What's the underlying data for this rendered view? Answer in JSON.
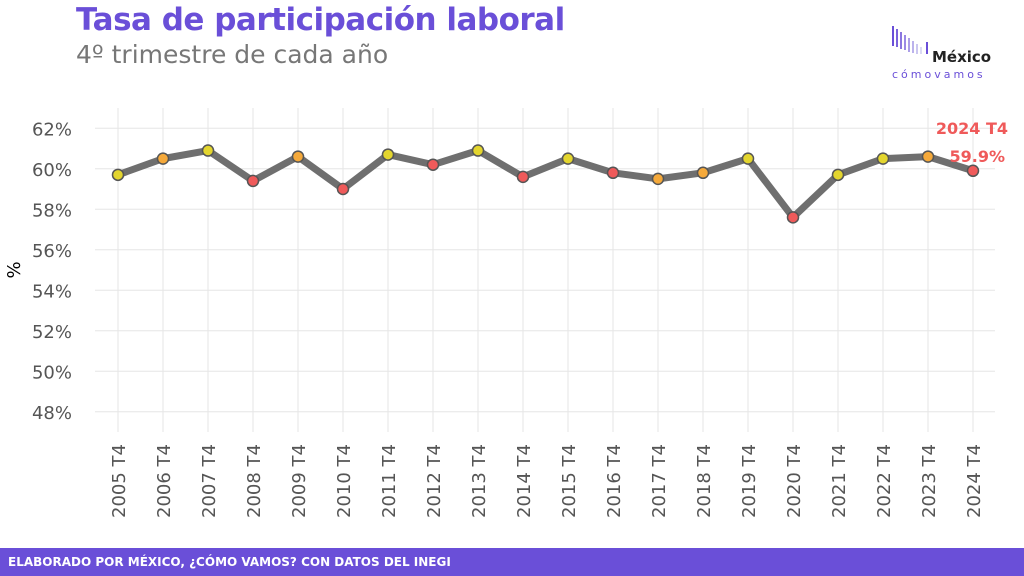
{
  "title": "Tasa de participación laboral",
  "subtitle": "4º trimestre de cada año",
  "logo": {
    "word1": "México",
    "word2": "cómovamos"
  },
  "footer": "ELABORADO POR MÉXICO, ¿CÓMO VAMOS? CON DATOS DEL INEGI",
  "colors": {
    "accent": "#6a4fd8",
    "line": "#6f6f6f",
    "red": "#ef5a5a",
    "orange": "#f5a93a",
    "yellow": "#e3d52e",
    "highlight": "#ef5a5a"
  },
  "chart_data": {
    "type": "line",
    "title": "Tasa de participación laboral",
    "subtitle": "4º trimestre de cada año",
    "xlabel": "",
    "ylabel": "%",
    "ylim": [
      47,
      63
    ],
    "yticks": [
      48,
      50,
      52,
      54,
      56,
      58,
      60,
      62
    ],
    "ytick_labels": [
      "48%",
      "50%",
      "52%",
      "54%",
      "56%",
      "58%",
      "60%",
      "62%"
    ],
    "grid": true,
    "categories": [
      "2005 T4",
      "2006 T4",
      "2007 T4",
      "2008 T4",
      "2009 T4",
      "2010 T4",
      "2011 T4",
      "2012 T4",
      "2013 T4",
      "2014 T4",
      "2015 T4",
      "2016 T4",
      "2017 T4",
      "2018 T4",
      "2019 T4",
      "2020 T4",
      "2021 T4",
      "2022 T4",
      "2023 T4",
      "2024 T4"
    ],
    "values": [
      59.7,
      60.5,
      60.9,
      59.4,
      60.6,
      59.0,
      60.7,
      60.2,
      60.9,
      59.6,
      60.5,
      59.8,
      59.5,
      59.8,
      60.5,
      57.6,
      59.7,
      60.5,
      60.6,
      59.9
    ],
    "point_colors": [
      "yellow",
      "orange",
      "yellow",
      "red",
      "orange",
      "red",
      "yellow",
      "red",
      "yellow",
      "red",
      "yellow",
      "red",
      "orange",
      "orange",
      "yellow",
      "red",
      "yellow",
      "yellow",
      "orange",
      "red"
    ],
    "annotation": {
      "label": "2024 T4",
      "value": "59.9%"
    }
  }
}
